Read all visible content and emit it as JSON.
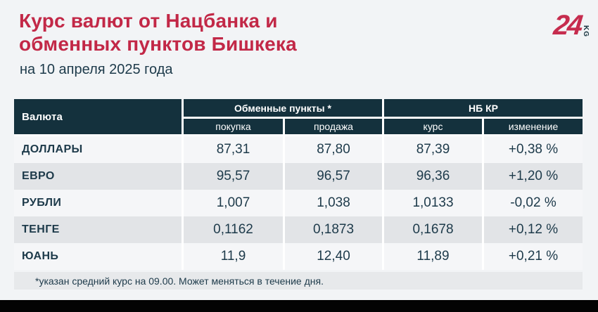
{
  "page": {
    "title_line1": "Курс валют от Нацбанка и",
    "title_line2": "обменных пунктов Бишкека",
    "subtitle": "на 10 апреля 2025 года",
    "footnote": "*указан средний курс на 09.00. Может меняться в течение дня."
  },
  "logo": {
    "number": "24",
    "suffix": "KG"
  },
  "colors": {
    "accent_red": "#c22847",
    "logo_red": "#c62c4e",
    "header_bg": "#14313d",
    "text_navy": "#1d3a4a",
    "row_gray": "#e2e4e7",
    "row_light": "#f5f6f8",
    "page_bg": "#f2f4f6",
    "bottom_bar": "#030303"
  },
  "table": {
    "col_currency": "Валюта",
    "group_exchange": "Обменные пункты *",
    "group_nbkr": "НБ КР",
    "sub_buy": "покупка",
    "sub_sell": "продажа",
    "sub_rate": "курс",
    "sub_change": "изменение",
    "rows": [
      {
        "currency": "ДОЛЛАРЫ",
        "buy": "87,31",
        "sell": "87,80",
        "rate": "87,39",
        "change": "+0,38 %"
      },
      {
        "currency": "ЕВРО",
        "buy": "95,57",
        "sell": "96,57",
        "rate": "96,36",
        "change": "+1,20 %"
      },
      {
        "currency": "РУБЛИ",
        "buy": "1,007",
        "sell": "1,038",
        "rate": "1,0133",
        "change": "-0,02 %"
      },
      {
        "currency": "ТЕНГЕ",
        "buy": "0,1162",
        "sell": "0,1873",
        "rate": "0,1678",
        "change": "+0,12 %"
      },
      {
        "currency": "ЮАНЬ",
        "buy": "11,9",
        "sell": "12,40",
        "rate": "11,89",
        "change": "+0,21 %"
      }
    ]
  },
  "chart_data": {
    "type": "table",
    "title": "Курс валют от Нацбанка и обменных пунктов Бишкека",
    "subtitle": "на 10 апреля 2025 года",
    "column_groups": [
      "Валюта",
      "Обменные пункты *",
      "НБ КР"
    ],
    "columns": [
      "Валюта",
      "покупка",
      "продажа",
      "курс",
      "изменение"
    ],
    "rows": [
      [
        "ДОЛЛАРЫ",
        "87,31",
        "87,80",
        "87,39",
        "+0,38 %"
      ],
      [
        "ЕВРО",
        "95,57",
        "96,57",
        "96,36",
        "+1,20 %"
      ],
      [
        "РУБЛИ",
        "1,007",
        "1,038",
        "1,0133",
        "-0,02 %"
      ],
      [
        "ТЕНГЕ",
        "0,1162",
        "0,1873",
        "0,1678",
        "+0,12 %"
      ],
      [
        "ЮАНЬ",
        "11,9",
        "12,40",
        "11,89",
        "+0,21 %"
      ]
    ],
    "footnote": "*указан средний курс на 09.00. Может меняться в течение дня."
  }
}
